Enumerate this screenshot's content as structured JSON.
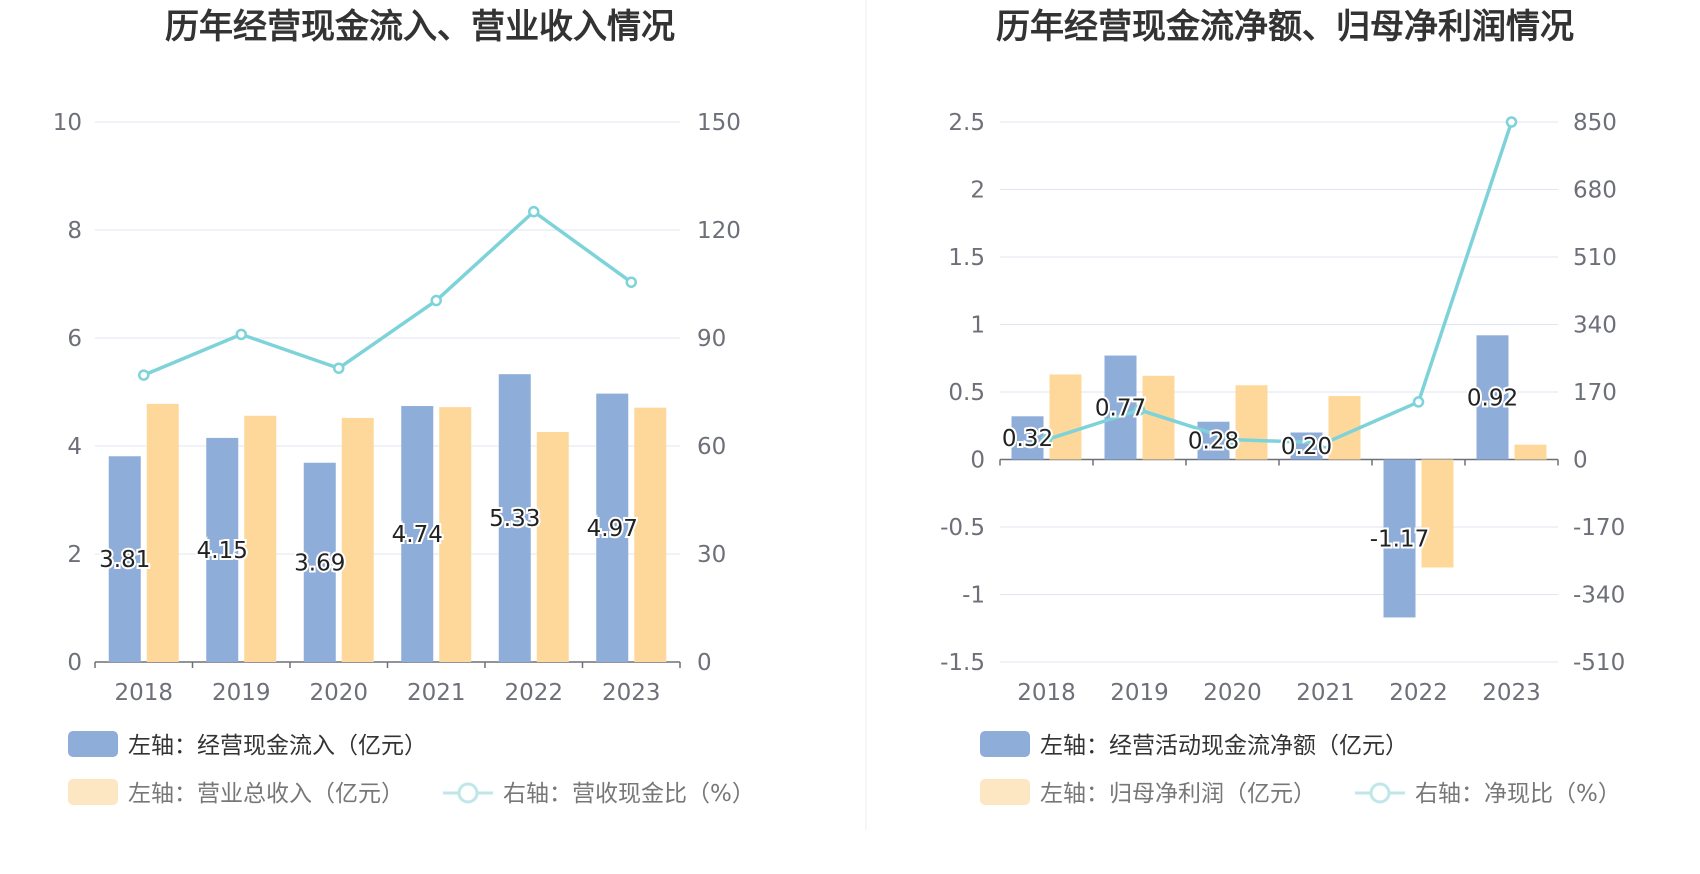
{
  "colors": {
    "bar1": "#8eadd9",
    "bar2": "#fed89a",
    "bar2_legend": "#fde7c2",
    "line": "#7dd3d9",
    "line_legend": "#bfe7ea",
    "grid": "#e0e6f1",
    "axis": "#6e7079",
    "divider": "#eeeeee"
  },
  "chart_data": [
    {
      "type": "bar",
      "title": "历年经营现金流入、营业收入情况",
      "categories": [
        "2018",
        "2019",
        "2020",
        "2021",
        "2022",
        "2023"
      ],
      "left_axis": {
        "ylim": [
          0,
          10
        ],
        "ticks": [
          "0",
          "2",
          "4",
          "6",
          "8",
          "10"
        ]
      },
      "right_axis": {
        "ylim": [
          0,
          150
        ],
        "ticks": [
          "0",
          "30",
          "60",
          "90",
          "120",
          "150"
        ]
      },
      "grid": true,
      "legend_position": "bottom-left",
      "series": [
        {
          "name": "左轴：经营现金流入（亿元）",
          "kind": "bar",
          "axis": "left",
          "values": [
            3.81,
            4.15,
            3.69,
            4.74,
            5.33,
            4.97
          ],
          "labels": [
            "3.81",
            "4.15",
            "3.69",
            "4.74",
            "5.33",
            "4.97"
          ]
        },
        {
          "name": "左轴：营业总收入（亿元）",
          "kind": "bar",
          "axis": "left",
          "values": [
            4.78,
            4.56,
            4.52,
            4.72,
            4.26,
            4.71
          ]
        },
        {
          "name": "右轴：营收现金比（%）",
          "kind": "line",
          "axis": "right",
          "values": [
            79.7,
            91,
            81.6,
            100.4,
            125.1,
            105.5
          ]
        }
      ]
    },
    {
      "type": "bar",
      "title": "历年经营现金流净额、归母净利润情况",
      "categories": [
        "2018",
        "2019",
        "2020",
        "2021",
        "2022",
        "2023"
      ],
      "left_axis": {
        "ylim": [
          -1.5,
          2.5
        ],
        "ticks": [
          "-1.5",
          "-1",
          "-0.5",
          "0",
          "0.5",
          "1",
          "1.5",
          "2",
          "2.5"
        ]
      },
      "right_axis": {
        "ylim": [
          -510,
          850
        ],
        "ticks": [
          "-510",
          "-340",
          "-170",
          "0",
          "170",
          "340",
          "510",
          "680",
          "850"
        ]
      },
      "grid": true,
      "legend_position": "bottom-left",
      "series": [
        {
          "name": "左轴：经营活动现金流净额（亿元）",
          "kind": "bar",
          "axis": "left",
          "values": [
            0.32,
            0.77,
            0.28,
            0.2,
            -1.17,
            0.92
          ],
          "labels": [
            "0.32",
            "0.77",
            "0.28",
            "0.20",
            "-1.17",
            "0.92"
          ]
        },
        {
          "name": "左轴：归母净利润（亿元）",
          "kind": "bar",
          "axis": "left",
          "values": [
            0.63,
            0.62,
            0.55,
            0.47,
            -0.8,
            0.11
          ]
        },
        {
          "name": "右轴：净现比（%）",
          "kind": "line",
          "axis": "right",
          "values": [
            50,
            125,
            50,
            42,
            145,
            850
          ]
        }
      ]
    }
  ]
}
